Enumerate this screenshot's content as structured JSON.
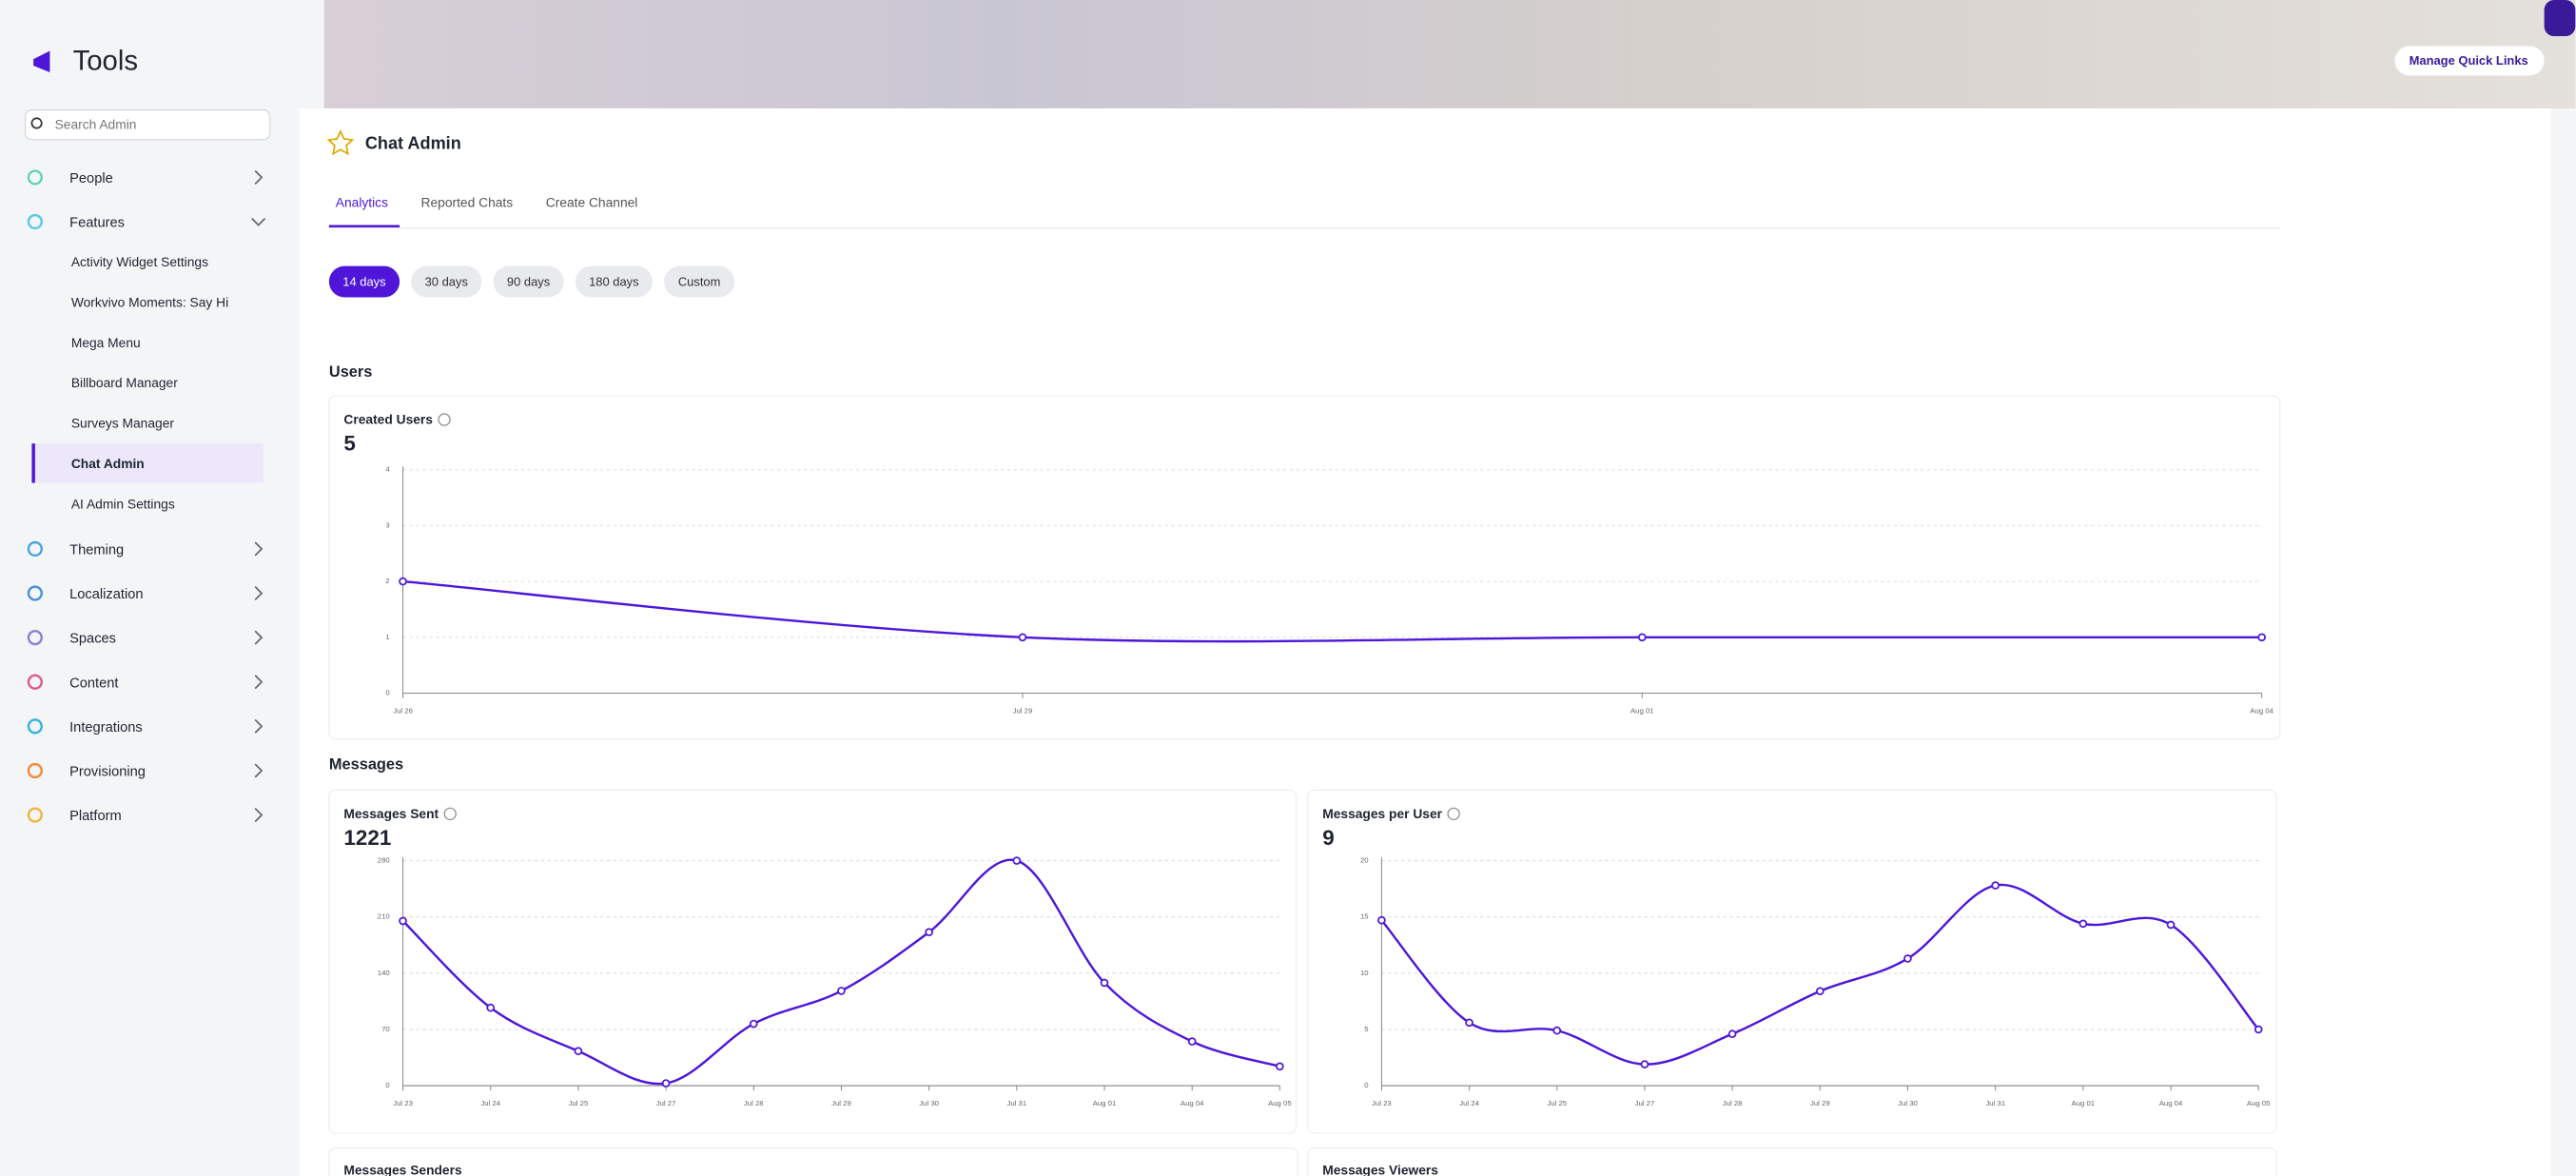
{
  "sidebar": {
    "title": "Tools",
    "search_placeholder": "Search Admin",
    "items": [
      {
        "label": "People",
        "color": "#5fd4b4"
      },
      {
        "label": "Features",
        "color": "#5bc8e8",
        "children": [
          "Activity Widget Settings",
          "Workvivo Moments: Say Hi",
          "Mega Menu",
          "Billboard Manager",
          "Surveys Manager",
          "Chat Admin",
          "AI Admin Settings"
        ],
        "selected": 5
      },
      {
        "label": "Theming",
        "color": "#4aa3df"
      },
      {
        "label": "Localization",
        "color": "#4a8fdf"
      },
      {
        "label": "Spaces",
        "color": "#8b7fd6"
      },
      {
        "label": "Content",
        "color": "#e05a8a"
      },
      {
        "label": "Integrations",
        "color": "#36b3e0"
      },
      {
        "label": "Provisioning",
        "color": "#f08a3c"
      },
      {
        "label": "Platform",
        "color": "#f0b43c"
      }
    ]
  },
  "header": {
    "quick_links": "Manage Quick Links"
  },
  "page": {
    "title": "Chat Admin",
    "tabs": [
      "Analytics",
      "Reported Chats",
      "Create Channel"
    ],
    "active_tab": 0,
    "ranges": [
      "14 days",
      "30 days",
      "90 days",
      "180 days",
      "Custom"
    ],
    "active_range": 0
  },
  "sections": [
    "Users",
    "Messages"
  ],
  "chart_data": [
    {
      "type": "line",
      "title": "Created Users",
      "total": 5,
      "color": "#4f16d9",
      "categories": [
        "Jul 26",
        "Jul 29",
        "Aug 01",
        "Aug 04"
      ],
      "values": [
        2,
        1,
        1,
        1
      ],
      "ylim": [
        0,
        4
      ],
      "yticks": [
        0,
        1,
        2,
        3,
        4
      ],
      "grid": true
    },
    {
      "type": "line",
      "title": "Messages Sent",
      "total": 1221,
      "color": "#4f16d9",
      "categories": [
        "Jul 23",
        "Jul 24",
        "Jul 25",
        "Jul 27",
        "Jul 28",
        "Jul 29",
        "Jul 30",
        "Jul 31",
        "Aug 01",
        "Aug 04",
        "Aug 05"
      ],
      "values": [
        205,
        97,
        43,
        3,
        77,
        118,
        191,
        280,
        128,
        55,
        24
      ],
      "ylim": [
        0,
        280
      ],
      "yticks": [
        0,
        70,
        140,
        210,
        280
      ],
      "grid": true
    },
    {
      "type": "line",
      "title": "Messages per User",
      "total": 9,
      "color": "#4f16d9",
      "categories": [
        "Jul 23",
        "Jul 24",
        "Jul 25",
        "Jul 27",
        "Jul 28",
        "Jul 29",
        "Jul 30",
        "Jul 31",
        "Aug 01",
        "Aug 04",
        "Aug 05"
      ],
      "values": [
        14.7,
        5.6,
        4.9,
        1.9,
        4.6,
        8.4,
        11.3,
        17.8,
        14.4,
        14.3,
        5.0
      ],
      "ylim": [
        0,
        20
      ],
      "yticks": [
        0,
        5,
        10,
        15,
        20
      ],
      "grid": true
    }
  ],
  "more_charts": [
    "Messages Senders",
    "Messages Viewers"
  ]
}
